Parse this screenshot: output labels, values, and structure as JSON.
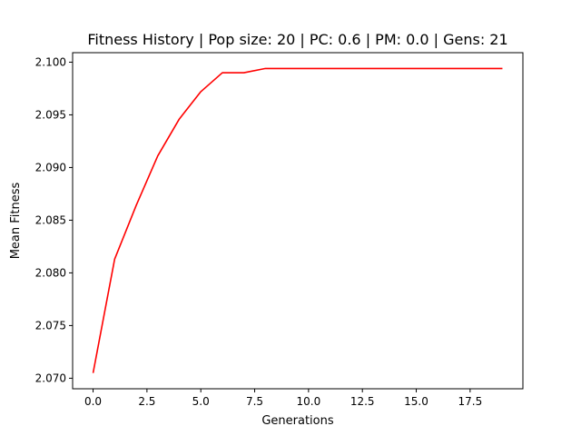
{
  "chart_data": {
    "type": "line",
    "title": "Fitness History | Pop size: 20 | PC: 0.6 | PM: 0.0 | Gens: 21",
    "xlabel": "Generations",
    "ylabel": "Mean Fitness",
    "xlim": [
      -0.95,
      19.95
    ],
    "ylim": [
      2.069,
      2.1009
    ],
    "xticks": [
      0,
      2.5,
      5,
      7.5,
      10,
      12.5,
      15,
      17.5
    ],
    "xtick_labels": [
      "0.0",
      "2.5",
      "5.0",
      "7.5",
      "10.0",
      "12.5",
      "15.0",
      "17.5"
    ],
    "yticks": [
      2.07,
      2.075,
      2.08,
      2.085,
      2.09,
      2.095,
      2.1
    ],
    "ytick_labels": [
      "2.070",
      "2.075",
      "2.080",
      "2.085",
      "2.090",
      "2.095",
      "2.100"
    ],
    "grid": false,
    "series": [
      {
        "color": "#ff0000",
        "x": [
          0,
          1,
          2,
          3,
          4,
          5,
          6,
          7,
          8,
          9,
          10,
          11,
          12,
          13,
          14,
          15,
          16,
          17,
          18,
          19
        ],
        "y": [
          2.0705,
          2.0813,
          2.0864,
          2.0911,
          2.0946,
          2.0972,
          2.099,
          2.099,
          2.0994,
          2.0994,
          2.0994,
          2.0994,
          2.0994,
          2.0994,
          2.0994,
          2.0994,
          2.0994,
          2.0994,
          2.0994,
          2.0994
        ]
      }
    ]
  }
}
